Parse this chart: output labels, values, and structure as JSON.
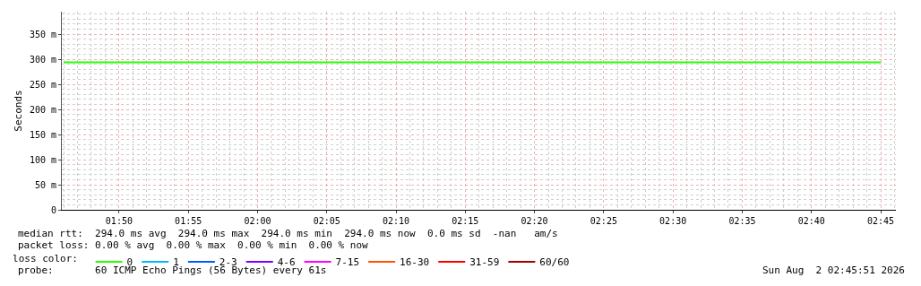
{
  "chart_data": {
    "type": "line",
    "ylabel": "Seconds",
    "legend_title": "loss color:",
    "x": [
      "2026-08-02T01:46",
      "2026-08-02T02:45"
    ],
    "series": [
      {
        "name": "0",
        "color": "#26ff00",
        "values": [
          294,
          294
        ]
      },
      {
        "name": "1",
        "color": "#00b8ff",
        "values": [
          null,
          null
        ]
      },
      {
        "name": "2-3",
        "color": "#0059ff",
        "values": [
          null,
          null
        ]
      },
      {
        "name": "4-6",
        "color": "#7e00ff",
        "values": [
          null,
          null
        ]
      },
      {
        "name": "7-15",
        "color": "#ff00ff",
        "values": [
          null,
          null
        ]
      },
      {
        "name": "16-30",
        "color": "#ff5500",
        "values": [
          null,
          null
        ]
      },
      {
        "name": "31-59",
        "color": "#ff0000",
        "values": [
          null,
          null
        ]
      },
      {
        "name": "60/60",
        "color": "#a00000",
        "values": [
          null,
          null
        ]
      }
    ],
    "xlim": [
      "2026-08-02T01:45:52",
      "2026-08-02T02:46:06"
    ],
    "xticks": [
      {
        "value": "2026-08-02T01:50",
        "label": "01:50"
      },
      {
        "value": "2026-08-02T01:55",
        "label": "01:55"
      },
      {
        "value": "2026-08-02T02:00",
        "label": "02:00"
      },
      {
        "value": "2026-08-02T02:05",
        "label": "02:05"
      },
      {
        "value": "2026-08-02T02:10",
        "label": "02:10"
      },
      {
        "value": "2026-08-02T02:15",
        "label": "02:15"
      },
      {
        "value": "2026-08-02T02:20",
        "label": "02:20"
      },
      {
        "value": "2026-08-02T02:25",
        "label": "02:25"
      },
      {
        "value": "2026-08-02T02:30",
        "label": "02:30"
      },
      {
        "value": "2026-08-02T02:35",
        "label": "02:35"
      },
      {
        "value": "2026-08-02T02:40",
        "label": "02:40"
      },
      {
        "value": "2026-08-02T02:45",
        "label": "02:45"
      }
    ],
    "ylim": [
      0,
      395
    ],
    "yticks": [
      0,
      {
        "value": 50,
        "label": "50 m"
      },
      {
        "value": 100,
        "label": "100 m"
      },
      {
        "value": 150,
        "label": "150 m"
      },
      {
        "value": 200,
        "label": "200 m"
      },
      {
        "value": 250,
        "label": "250 m"
      },
      {
        "value": 300,
        "label": "300 m"
      },
      {
        "value": 350,
        "label": "350 m"
      }
    ],
    "grid": true,
    "legend": "bottom",
    "marker": "none",
    "line_style": "solid",
    "annotations": [
      "median rtt:  294.0 ms avg  294.0 ms max  294.0 ms min  294.0 ms now  0.0 ms sd  -nan   am/s",
      "packet loss: 0.00 % avg  0.00 % max  0.00 % min  0.00 % now",
      "probe:       60 ICMP Echo Pings (56 Bytes) every 61s",
      "Sun Aug  2 02:45:51 2026"
    ]
  }
}
